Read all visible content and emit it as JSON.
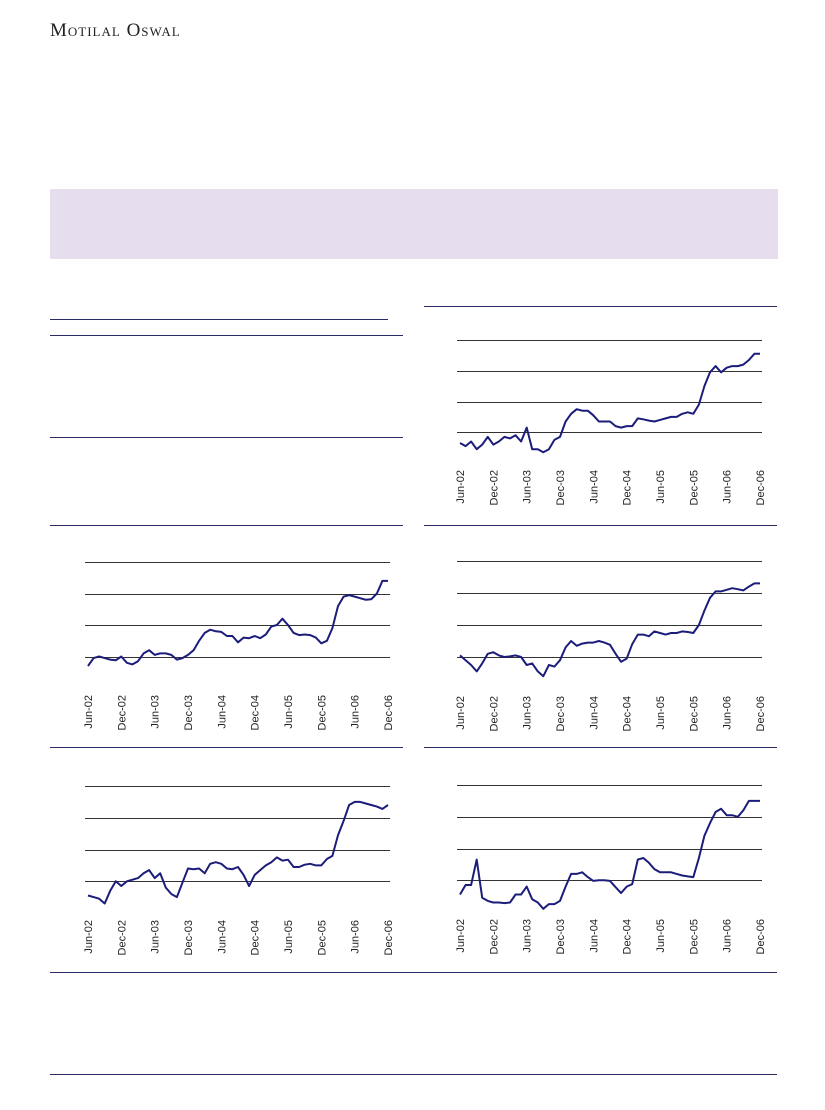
{
  "header": {
    "brand": "Motilal Oswal"
  },
  "chart_data": [
    {
      "type": "line",
      "color": "#1c1c7a",
      "ylim": [
        0,
        4
      ],
      "yticks": [
        1,
        2,
        3,
        4
      ],
      "grid": true,
      "categories": [
        "Jun-02",
        null,
        null,
        null,
        null,
        null,
        "Dec-02",
        null,
        null,
        null,
        null,
        null,
        "Jun-03",
        null,
        null,
        null,
        null,
        null,
        "Dec-03",
        null,
        null,
        null,
        null,
        null,
        "Jun-04",
        null,
        null,
        null,
        null,
        null,
        "Dec-04",
        null,
        null,
        null,
        null,
        null,
        "Jun-05",
        null,
        null,
        null,
        null,
        null,
        "Dec-05",
        null,
        null,
        null,
        null,
        null,
        "Jun-06",
        null,
        null,
        null,
        null,
        null,
        "Dec-06"
      ],
      "values": [
        0.65,
        0.55,
        0.7,
        0.45,
        0.6,
        0.85,
        0.6,
        0.7,
        0.85,
        0.8,
        0.9,
        0.7,
        1.15,
        0.45,
        0.45,
        0.35,
        0.45,
        0.75,
        0.85,
        1.35,
        1.6,
        1.75,
        1.7,
        1.7,
        1.55,
        1.35,
        1.35,
        1.35,
        1.2,
        1.15,
        1.2,
        1.2,
        1.45,
        1.42,
        1.38,
        1.35,
        1.4,
        1.45,
        1.5,
        1.5,
        1.6,
        1.65,
        1.6,
        1.9,
        2.5,
        2.95,
        3.15,
        2.95,
        3.1,
        3.15,
        3.15,
        3.2,
        3.35,
        3.55,
        3.55
      ]
    },
    {
      "type": "line",
      "color": "#1c1c7a",
      "ylim": [
        0,
        4
      ],
      "yticks": [
        1,
        2,
        3,
        4
      ],
      "grid": true,
      "categories": [
        "Jun-02",
        null,
        null,
        null,
        null,
        null,
        "Dec-02",
        null,
        null,
        null,
        null,
        null,
        "Jun-03",
        null,
        null,
        null,
        null,
        null,
        "Dec-03",
        null,
        null,
        null,
        null,
        null,
        "Jun-04",
        null,
        null,
        null,
        null,
        null,
        "Dec-04",
        null,
        null,
        null,
        null,
        null,
        "Jun-05",
        null,
        null,
        null,
        null,
        null,
        "Dec-05",
        null,
        null,
        null,
        null,
        null,
        "Jun-06",
        null,
        null,
        null,
        null,
        null,
        "Dec-06"
      ],
      "values": [
        0.7,
        0.95,
        1.0,
        0.95,
        0.9,
        0.88,
        1.0,
        0.8,
        0.75,
        0.85,
        1.1,
        1.2,
        1.05,
        1.1,
        1.1,
        1.05,
        0.9,
        0.95,
        1.05,
        1.2,
        1.5,
        1.75,
        1.85,
        1.8,
        1.78,
        1.65,
        1.65,
        1.45,
        1.6,
        1.58,
        1.65,
        1.58,
        1.7,
        1.95,
        2.0,
        2.2,
        2.0,
        1.75,
        1.68,
        1.7,
        1.68,
        1.6,
        1.42,
        1.5,
        1.9,
        2.6,
        2.9,
        2.95,
        2.9,
        2.85,
        2.8,
        2.82,
        3.0,
        3.4,
        3.4
      ]
    },
    {
      "type": "line",
      "color": "#1c1c7a",
      "ylim": [
        0,
        4
      ],
      "yticks": [
        1,
        2,
        3,
        4
      ],
      "grid": true,
      "categories": [
        "Jun-02",
        null,
        null,
        null,
        null,
        null,
        "Dec-02",
        null,
        null,
        null,
        null,
        null,
        "Jun-03",
        null,
        null,
        null,
        null,
        null,
        "Dec-03",
        null,
        null,
        null,
        null,
        null,
        "Jun-04",
        null,
        null,
        null,
        null,
        null,
        "Dec-04",
        null,
        null,
        null,
        null,
        null,
        "Jun-05",
        null,
        null,
        null,
        null,
        null,
        "Dec-05",
        null,
        null,
        null,
        null,
        null,
        "Jun-06",
        null,
        null,
        null,
        null,
        null,
        "Dec-06"
      ],
      "values": [
        1.05,
        0.9,
        0.75,
        0.55,
        0.8,
        1.1,
        1.15,
        1.05,
        1.0,
        1.02,
        1.05,
        1.0,
        0.75,
        0.8,
        0.55,
        0.4,
        0.75,
        0.7,
        0.9,
        1.3,
        1.5,
        1.35,
        1.42,
        1.45,
        1.45,
        1.5,
        1.45,
        1.38,
        1.1,
        0.85,
        0.95,
        1.4,
        1.7,
        1.7,
        1.65,
        1.8,
        1.75,
        1.7,
        1.75,
        1.75,
        1.8,
        1.78,
        1.75,
        2.0,
        2.45,
        2.85,
        3.05,
        3.05,
        3.1,
        3.15,
        3.12,
        3.08,
        3.2,
        3.3,
        3.3
      ]
    },
    {
      "type": "line",
      "color": "#1c1c7a",
      "ylim": [
        0,
        4
      ],
      "yticks": [
        1,
        2,
        3,
        4
      ],
      "grid": true,
      "categories": [
        "Jun-02",
        null,
        null,
        null,
        null,
        null,
        "Dec-02",
        null,
        null,
        null,
        null,
        null,
        "Jun-03",
        null,
        null,
        null,
        null,
        null,
        "Dec-03",
        null,
        null,
        null,
        null,
        null,
        "Jun-04",
        null,
        null,
        null,
        null,
        null,
        "Dec-04",
        null,
        null,
        null,
        null,
        null,
        "Jun-05",
        null,
        null,
        null,
        null,
        null,
        "Dec-05",
        null,
        null,
        null,
        null,
        null,
        "Jun-06",
        null,
        null,
        null,
        null,
        null,
        "Dec-06"
      ],
      "values": [
        0.55,
        0.5,
        0.45,
        0.3,
        0.7,
        1.0,
        0.85,
        1.0,
        1.05,
        1.1,
        1.25,
        1.35,
        1.1,
        1.25,
        0.8,
        0.6,
        0.5,
        0.95,
        1.4,
        1.38,
        1.4,
        1.25,
        1.55,
        1.6,
        1.55,
        1.4,
        1.38,
        1.45,
        1.2,
        0.85,
        1.2,
        1.35,
        1.5,
        1.6,
        1.75,
        1.65,
        1.68,
        1.45,
        1.45,
        1.52,
        1.55,
        1.5,
        1.5,
        1.7,
        1.8,
        2.45,
        2.9,
        3.4,
        3.5,
        3.5,
        3.45,
        3.4,
        3.35,
        3.28,
        3.4
      ]
    },
    {
      "type": "line",
      "color": "#1c1c7a",
      "ylim": [
        0,
        4
      ],
      "yticks": [
        1,
        2,
        3,
        4
      ],
      "grid": true,
      "categories": [
        "Jun-02",
        null,
        null,
        null,
        null,
        null,
        "Dec-02",
        null,
        null,
        null,
        null,
        null,
        "Jun-03",
        null,
        null,
        null,
        null,
        null,
        "Dec-03",
        null,
        null,
        null,
        null,
        null,
        "Jun-04",
        null,
        null,
        null,
        null,
        null,
        "Dec-04",
        null,
        null,
        null,
        null,
        null,
        "Jun-05",
        null,
        null,
        null,
        null,
        null,
        "Dec-05",
        null,
        null,
        null,
        null,
        null,
        "Jun-06",
        null,
        null,
        null,
        null,
        null,
        "Dec-06"
      ],
      "values": [
        0.55,
        0.85,
        0.85,
        1.65,
        0.45,
        0.35,
        0.3,
        0.3,
        0.28,
        0.3,
        0.55,
        0.55,
        0.8,
        0.4,
        0.3,
        0.1,
        0.25,
        0.25,
        0.35,
        0.8,
        1.2,
        1.2,
        1.25,
        1.1,
        0.98,
        1.0,
        1.0,
        0.98,
        0.78,
        0.6,
        0.8,
        0.88,
        1.65,
        1.7,
        1.55,
        1.35,
        1.25,
        1.25,
        1.25,
        1.2,
        1.15,
        1.12,
        1.1,
        1.7,
        2.4,
        2.8,
        3.15,
        3.25,
        3.05,
        3.05,
        3.0,
        3.2,
        3.5,
        3.5,
        3.5
      ]
    }
  ]
}
